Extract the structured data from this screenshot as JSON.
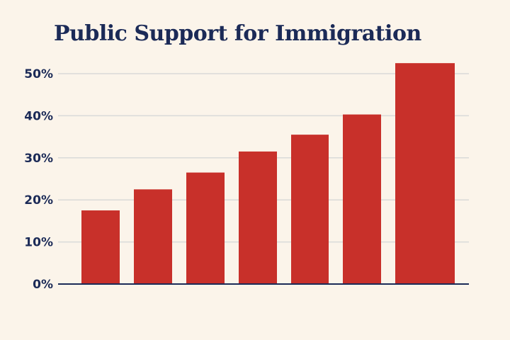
{
  "chart_data": {
    "type": "bar",
    "title": "Public Support for Immigration",
    "xlabel": "",
    "ylabel": "",
    "categories": [
      "",
      "",
      "",
      "",
      "",
      "",
      ""
    ],
    "values": [
      17.5,
      22.5,
      26.5,
      31.5,
      35.5,
      40.3,
      52.5
    ],
    "ylim": [
      0,
      50
    ],
    "yticks": [
      "0%",
      "10%",
      "20%",
      "30%",
      "40%",
      "50%"
    ],
    "grid": true,
    "legend": "none",
    "colors": {
      "bar": "#c8302a",
      "axis": "#1b2a57",
      "grid": "#d9dad8",
      "text": "#1b2a57",
      "background": "#fbf4ea"
    }
  }
}
